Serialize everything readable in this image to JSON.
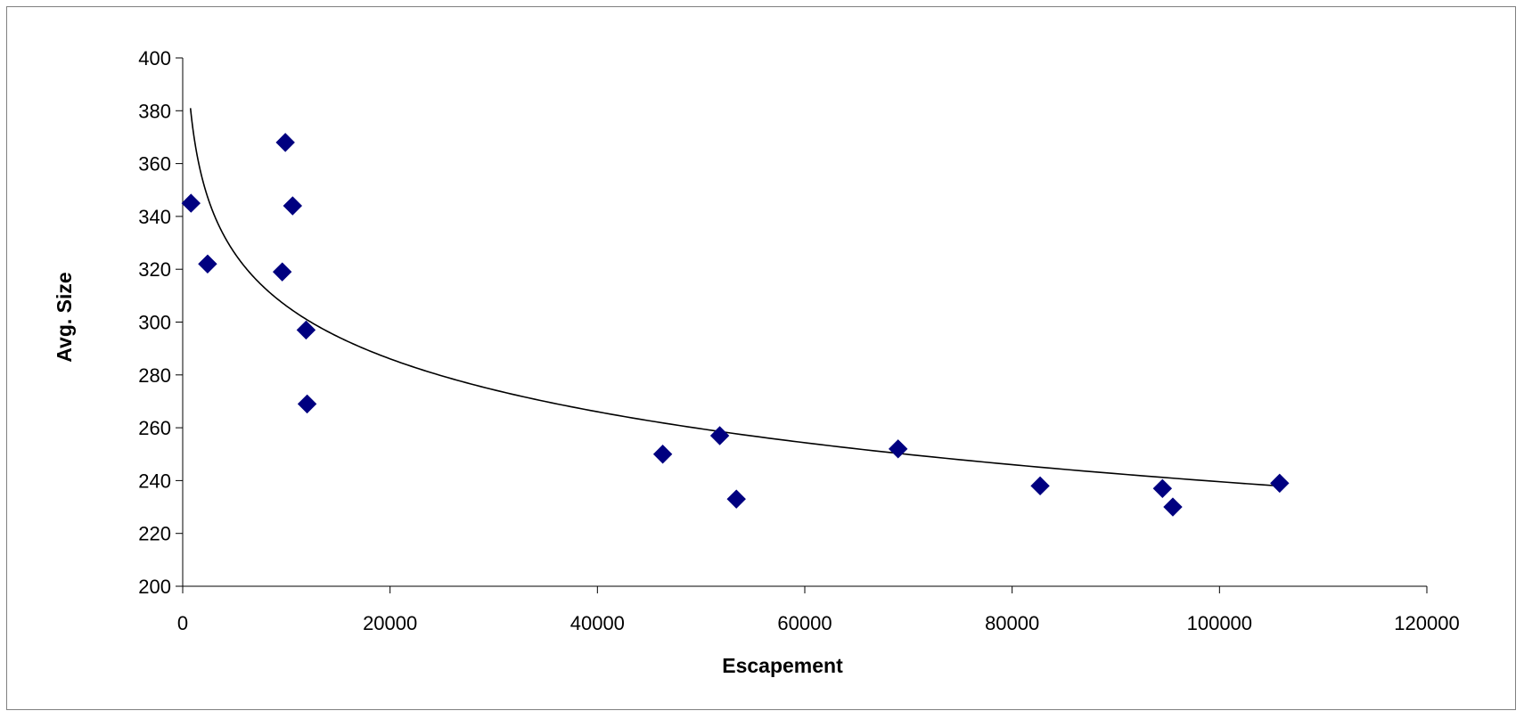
{
  "chart_data": {
    "type": "scatter",
    "title": "",
    "xlabel": "Escapement",
    "ylabel": "Avg. Size",
    "xlim": [
      0,
      120000
    ],
    "ylim": [
      200,
      400
    ],
    "x_ticks": [
      0,
      20000,
      40000,
      60000,
      80000,
      100000,
      120000
    ],
    "y_ticks": [
      200,
      220,
      240,
      260,
      280,
      300,
      320,
      340,
      360,
      380,
      400
    ],
    "grid": false,
    "legend": "none",
    "series": [
      {
        "marker": "diamond",
        "color": "#000080",
        "points": [
          {
            "x": 800,
            "y": 345
          },
          {
            "x": 2400,
            "y": 322
          },
          {
            "x": 9600,
            "y": 319
          },
          {
            "x": 9900,
            "y": 368
          },
          {
            "x": 10600,
            "y": 344
          },
          {
            "x": 11900,
            "y": 297
          },
          {
            "x": 12000,
            "y": 269
          },
          {
            "x": 46300,
            "y": 250
          },
          {
            "x": 51800,
            "y": 257
          },
          {
            "x": 53400,
            "y": 233
          },
          {
            "x": 69000,
            "y": 252
          },
          {
            "x": 82700,
            "y": 238
          },
          {
            "x": 94500,
            "y": 237
          },
          {
            "x": 95500,
            "y": 230
          },
          {
            "x": 105800,
            "y": 239
          }
        ]
      }
    ],
    "trendline": {
      "type": "logarithmic",
      "color": "#000000",
      "x_range": [
        750,
        105800
      ],
      "formula": {
        "a": -28.9,
        "b": 572.3
      }
    }
  }
}
